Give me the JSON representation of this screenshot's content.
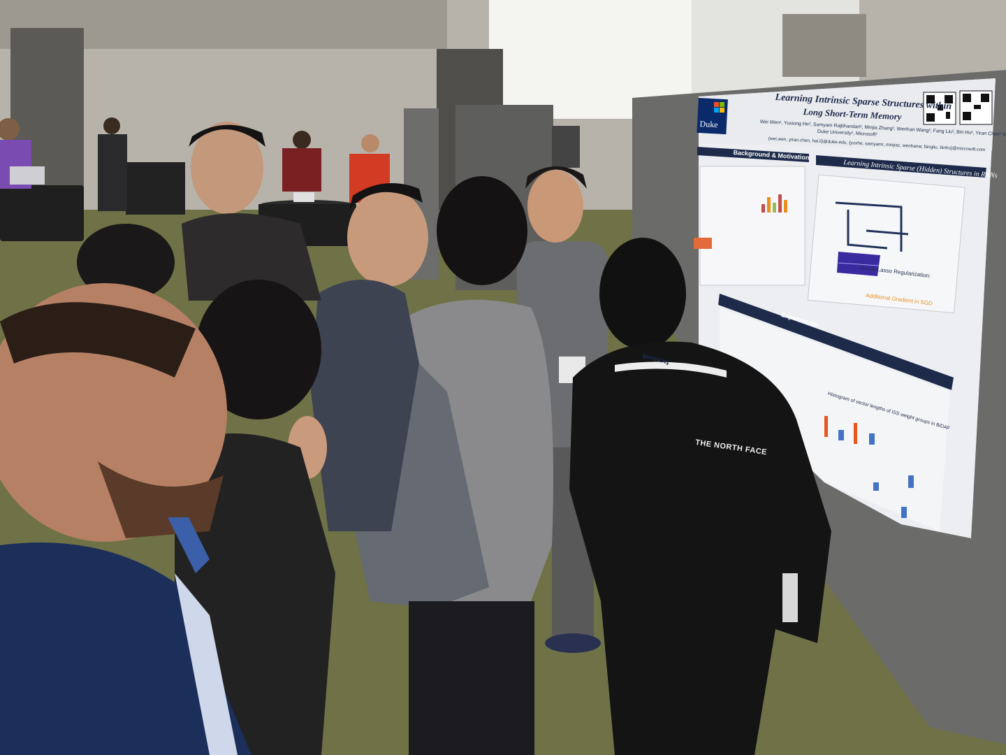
{
  "scene": {
    "description_kind": "photo",
    "colors": {
      "carpet": "#6f7246",
      "wall": "#b9b6ae",
      "board": "#6e6e6e",
      "poster_header": "#1d2a4a",
      "accent_orange": "#e8901f"
    }
  },
  "poster": {
    "title_line1": "Learning Intrinsic Sparse Structures within",
    "title_line2": "Long Short-Term Memory",
    "authors": "Wei Wen¹, Yuxiong He², Samyam Rajbhandari², Minjia Zhang², Wenhan Wang², Fang Liu², Bin Hu², Yiran Chen¹ & Hai Li¹",
    "affiliation": "Duke University¹, Microsoft²",
    "emails": "{wei.wen, yiran.chen, hai.li}@duke.edu, {yuxhe, samyamr, minjiaz, wenhanw, fangliu, binhu}@microsoft.com",
    "logo_text": "Duke",
    "section_background": "Background & Motivation",
    "section_iss": "Learning Intrinsic Sparse (Hidden) Structures in RNNs",
    "section_experiments": "Experiments",
    "group_lasso_label": "Group Lasso Regularization:",
    "additional_gradient_label": "Additional Gradient in SGD",
    "histogram_title": "Histogram of vector lengths of ISS weight groups in BiDAF"
  },
  "clothing": {
    "jacket_brand": "THE NORTH FACE",
    "lanyard_brand": "facebook"
  }
}
